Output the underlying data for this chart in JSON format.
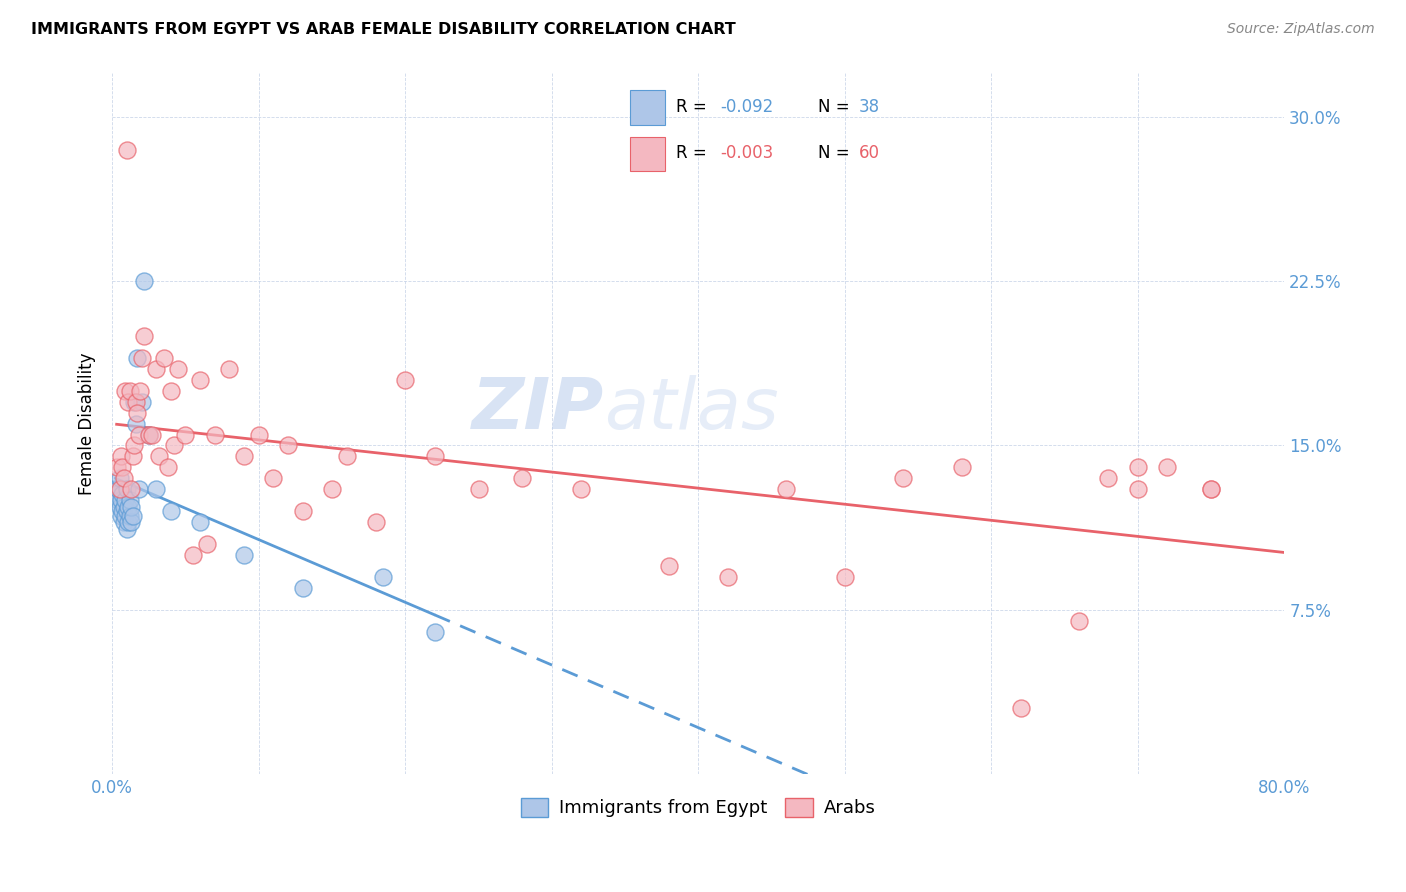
{
  "title": "IMMIGRANTS FROM EGYPT VS ARAB FEMALE DISABILITY CORRELATION CHART",
  "source": "Source: ZipAtlas.com",
  "ylabel": "Female Disability",
  "legend_bottom": [
    "Immigrants from Egypt",
    "Arabs"
  ],
  "xlim": [
    0.0,
    0.8
  ],
  "ylim": [
    0.0,
    0.32
  ],
  "xticks": [
    0.0,
    0.1,
    0.2,
    0.3,
    0.4,
    0.5,
    0.6,
    0.7,
    0.8
  ],
  "yticks": [
    0.0,
    0.075,
    0.15,
    0.225,
    0.3
  ],
  "egypt_color": "#aec6e8",
  "egypt_edge_color": "#5b9bd5",
  "arab_color": "#f4b8c1",
  "arab_edge_color": "#e8626a",
  "arab_line_color": "#e8626a",
  "egypt_line_color": "#5b9bd5",
  "watermark_zip": "ZIP",
  "watermark_atlas": "atlas",
  "egypt_scatter_x": [
    0.002,
    0.003,
    0.004,
    0.004,
    0.005,
    0.005,
    0.006,
    0.006,
    0.007,
    0.007,
    0.008,
    0.008,
    0.009,
    0.009,
    0.01,
    0.01,
    0.01,
    0.011,
    0.011,
    0.012,
    0.012,
    0.013,
    0.013,
    0.014,
    0.015,
    0.016,
    0.017,
    0.018,
    0.02,
    0.022,
    0.025,
    0.03,
    0.04,
    0.06,
    0.09,
    0.13,
    0.185,
    0.22
  ],
  "egypt_scatter_y": [
    0.13,
    0.128,
    0.125,
    0.13,
    0.122,
    0.135,
    0.118,
    0.125,
    0.12,
    0.128,
    0.115,
    0.122,
    0.118,
    0.125,
    0.112,
    0.12,
    0.13,
    0.115,
    0.122,
    0.118,
    0.125,
    0.115,
    0.122,
    0.118,
    0.17,
    0.16,
    0.19,
    0.13,
    0.17,
    0.225,
    0.155,
    0.13,
    0.12,
    0.115,
    0.1,
    0.085,
    0.09,
    0.065
  ],
  "arab_scatter_x": [
    0.003,
    0.005,
    0.006,
    0.007,
    0.008,
    0.009,
    0.01,
    0.011,
    0.012,
    0.013,
    0.014,
    0.015,
    0.016,
    0.017,
    0.018,
    0.019,
    0.02,
    0.022,
    0.025,
    0.027,
    0.03,
    0.032,
    0.035,
    0.038,
    0.04,
    0.042,
    0.045,
    0.05,
    0.055,
    0.06,
    0.065,
    0.07,
    0.08,
    0.09,
    0.1,
    0.11,
    0.12,
    0.13,
    0.15,
    0.16,
    0.18,
    0.2,
    0.22,
    0.25,
    0.28,
    0.32,
    0.38,
    0.42,
    0.46,
    0.5,
    0.54,
    0.58,
    0.62,
    0.66,
    0.7,
    0.75,
    0.7,
    0.68,
    0.72,
    0.75
  ],
  "arab_scatter_y": [
    0.14,
    0.13,
    0.145,
    0.14,
    0.135,
    0.175,
    0.285,
    0.17,
    0.175,
    0.13,
    0.145,
    0.15,
    0.17,
    0.165,
    0.155,
    0.175,
    0.19,
    0.2,
    0.155,
    0.155,
    0.185,
    0.145,
    0.19,
    0.14,
    0.175,
    0.15,
    0.185,
    0.155,
    0.1,
    0.18,
    0.105,
    0.155,
    0.185,
    0.145,
    0.155,
    0.135,
    0.15,
    0.12,
    0.13,
    0.145,
    0.115,
    0.18,
    0.145,
    0.13,
    0.135,
    0.13,
    0.095,
    0.09,
    0.13,
    0.09,
    0.135,
    0.14,
    0.03,
    0.07,
    0.14,
    0.13,
    0.13,
    0.135,
    0.14,
    0.13
  ]
}
